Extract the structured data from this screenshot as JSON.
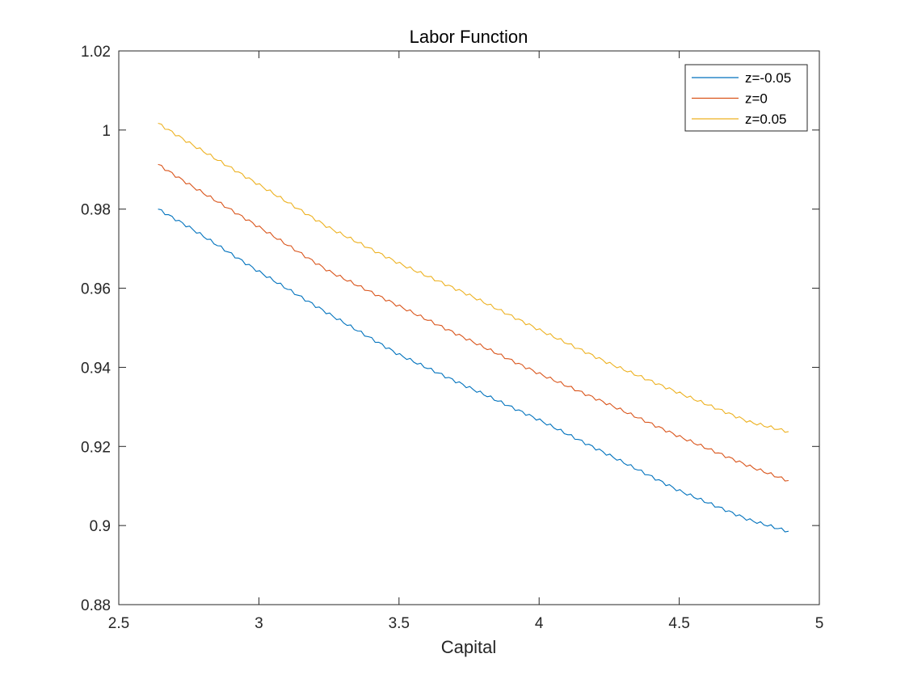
{
  "chart_data": {
    "type": "line",
    "title": "Labor Function",
    "xlabel": "Capital",
    "ylabel": "",
    "xlim": [
      2.5,
      5
    ],
    "ylim": [
      0.88,
      1.02
    ],
    "xticks": [
      2.5,
      3,
      3.5,
      4,
      4.5,
      5
    ],
    "yticks": [
      0.88,
      0.9,
      0.92,
      0.94,
      0.96,
      0.98,
      1,
      1.02
    ],
    "xtick_labels": [
      "2.5",
      "3",
      "3.5",
      "4",
      "4.5",
      "5"
    ],
    "ytick_labels": [
      "0.88",
      "0.9",
      "0.92",
      "0.94",
      "0.96",
      "0.98",
      "1",
      "1.02"
    ],
    "grid": false,
    "legend_position": "top-right",
    "x": [
      2.64,
      2.75,
      3.0,
      3.25,
      3.5,
      3.75,
      4.0,
      4.25,
      4.5,
      4.75,
      4.89
    ],
    "series": [
      {
        "name": "z=-0.05",
        "color": "#0072BD",
        "values": [
          0.98,
          0.9755,
          0.9642,
          0.9535,
          0.9432,
          0.9349,
          0.9267,
          0.9178,
          0.9088,
          0.9014,
          0.8985
        ]
      },
      {
        "name": "z=0",
        "color": "#D95319",
        "values": [
          0.9913,
          0.9863,
          0.9755,
          0.9643,
          0.9555,
          0.9469,
          0.9384,
          0.9306,
          0.9225,
          0.915,
          0.9113
        ]
      },
      {
        "name": "z=0.05",
        "color": "#EDB120",
        "values": [
          1.0017,
          0.9968,
          0.9862,
          0.9753,
          0.9663,
          0.9583,
          0.9495,
          0.941,
          0.9335,
          0.9262,
          0.9237
        ]
      }
    ]
  }
}
